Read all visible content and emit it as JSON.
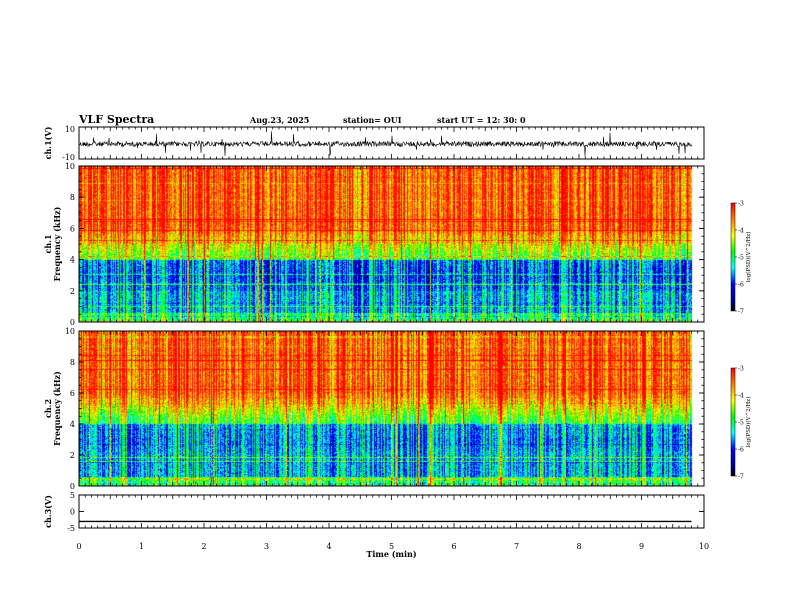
{
  "header": {
    "title": "VLF Spectra",
    "date": "Aug.23, 2025",
    "station": "station= OUI",
    "start": "start UT =   12: 30: 0"
  },
  "chart_data": [
    {
      "type": "line",
      "title": "",
      "xlabel": "",
      "ylabel": "ch.1(V)",
      "xlim": [
        0,
        10
      ],
      "ylim": [
        -10,
        10
      ],
      "yticks": [
        "10",
        "-10"
      ],
      "series": [
        {
          "name": "",
          "description_value_level": 0,
          "x": [
            0,
            9.8
          ],
          "y": [
            0,
            0
          ]
        }
      ]
    },
    {
      "type": "heatmap",
      "ylabel_channel": "ch.1",
      "ylabel": "Frequency (kHz)",
      "xlim": [
        0,
        10
      ],
      "ylim": [
        0,
        10
      ],
      "yticks": [
        "0",
        "2",
        "4",
        "6",
        "8",
        "10"
      ],
      "data_xmax": 9.8,
      "colorbar": {
        "label": "log(PSD)(V^2/Hz)",
        "range": [
          -7,
          -3
        ],
        "ticks": [
          "-3",
          "-4",
          "-5",
          "-6",
          "-7"
        ]
      }
    },
    {
      "type": "heatmap",
      "ylabel_channel": "ch.2",
      "ylabel": "Frequency (kHz)",
      "xlim": [
        0,
        10
      ],
      "ylim": [
        0,
        10
      ],
      "yticks": [
        "0",
        "2",
        "4",
        "6",
        "8",
        "10"
      ],
      "data_xmax": 9.8,
      "colorbar": {
        "label": "log(PSD)(V^2/Hz)",
        "range": [
          -7,
          -3
        ],
        "ticks": [
          "-3",
          "-4",
          "-5",
          "-6",
          "-7"
        ]
      }
    },
    {
      "type": "line",
      "ylabel": "ch.3(V)",
      "xlim": [
        0,
        10
      ],
      "ylim": [
        -5,
        5
      ],
      "yticks": [
        "5",
        "0",
        "-5"
      ],
      "series": [
        {
          "name": "",
          "x": [
            0,
            9.8
          ],
          "y": [
            -3,
            -3
          ]
        }
      ]
    }
  ],
  "xaxis": {
    "label": "Time (min)",
    "ticks": [
      "0",
      "1",
      "2",
      "3",
      "4",
      "5",
      "6",
      "7",
      "8",
      "9",
      "10"
    ]
  },
  "colors": {
    "low": "#00008b",
    "mid": "#00ff00",
    "high": "#ff0000"
  }
}
